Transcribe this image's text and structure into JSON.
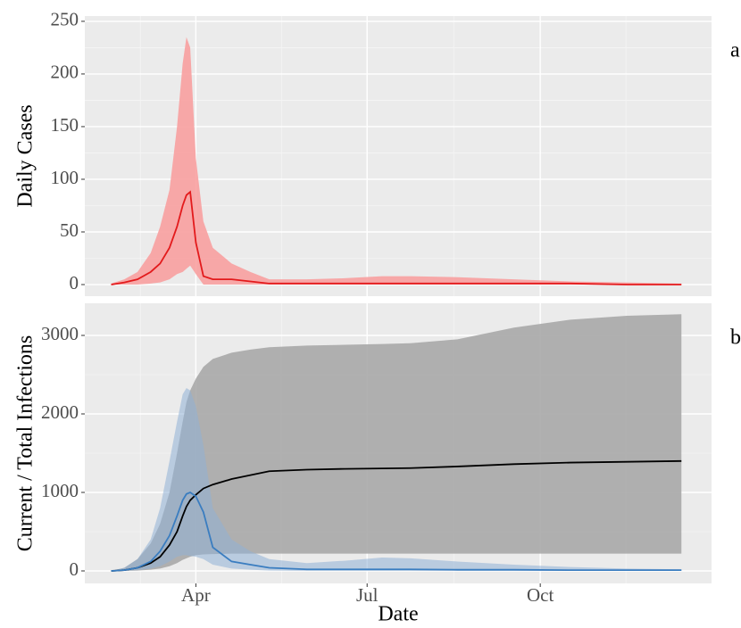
{
  "chart_data": [
    {
      "type": "line",
      "panel_label": "a",
      "ylabel": "Daily Cases",
      "x": [
        46,
        53,
        60,
        67,
        72,
        77,
        81,
        84,
        86,
        88,
        91,
        95,
        100,
        110,
        120,
        130,
        150,
        170,
        190,
        205,
        230,
        260,
        290,
        320,
        349
      ],
      "xlim": [
        32,
        365
      ],
      "ylim": [
        -11,
        255
      ],
      "yticks": [
        0,
        50,
        100,
        150,
        200,
        250
      ],
      "grid": true,
      "series": [
        {
          "color": "#E31A1C",
          "band_color": "#F8A0A0",
          "values": [
            0,
            2,
            5,
            12,
            20,
            35,
            55,
            75,
            85,
            88,
            40,
            8,
            5,
            5,
            3,
            1,
            1,
            1,
            1,
            1,
            1,
            1,
            1,
            0,
            0
          ],
          "lower": [
            0,
            0,
            0,
            1,
            2,
            5,
            10,
            12,
            15,
            18,
            10,
            0,
            0,
            0,
            0,
            0,
            0,
            0,
            0,
            0,
            0,
            0,
            0,
            0,
            0
          ],
          "upper": [
            1,
            5,
            12,
            30,
            55,
            90,
            150,
            210,
            235,
            225,
            120,
            60,
            35,
            20,
            12,
            5,
            5,
            6,
            8,
            8,
            7,
            5,
            3,
            2,
            1
          ]
        }
      ]
    },
    {
      "type": "line",
      "panel_label": "b",
      "ylabel": "Current / Total Infections",
      "xlabel": "Date",
      "x": [
        46,
        53,
        60,
        67,
        72,
        77,
        81,
        84,
        86,
        88,
        91,
        95,
        100,
        110,
        120,
        130,
        150,
        170,
        190,
        205,
        230,
        260,
        290,
        320,
        349
      ],
      "xlim": [
        32,
        365
      ],
      "xticks": [
        {
          "value": 91,
          "label": "Apr"
        },
        {
          "value": 182,
          "label": "Jul"
        },
        {
          "value": 274,
          "label": "Oct"
        }
      ],
      "ylim": [
        -159,
        3409
      ],
      "yticks": [
        0,
        1000,
        2000,
        3000
      ],
      "grid": true,
      "series": [
        {
          "color": "#000000",
          "band_color": "#A8A8A8",
          "values": [
            0,
            10,
            40,
            100,
            180,
            330,
            500,
            700,
            820,
            900,
            970,
            1050,
            1100,
            1170,
            1220,
            1270,
            1290,
            1300,
            1305,
            1310,
            1330,
            1360,
            1380,
            1390,
            1400
          ],
          "lower": [
            0,
            0,
            5,
            15,
            30,
            60,
            100,
            140,
            160,
            180,
            200,
            210,
            215,
            220,
            220,
            220,
            220,
            220,
            220,
            220,
            220,
            220,
            220,
            220,
            220
          ],
          "upper": [
            0,
            40,
            150,
            350,
            600,
            1000,
            1500,
            1900,
            2150,
            2300,
            2450,
            2600,
            2700,
            2780,
            2820,
            2850,
            2870,
            2880,
            2890,
            2900,
            2950,
            3100,
            3200,
            3250,
            3270
          ]
        },
        {
          "color": "#3A7DC0",
          "band_color": "#8FB0D6",
          "values": [
            0,
            10,
            40,
            120,
            250,
            450,
            700,
            900,
            980,
            1000,
            950,
            750,
            300,
            120,
            80,
            40,
            20,
            20,
            20,
            20,
            15,
            15,
            10,
            10,
            10
          ],
          "lower": [
            0,
            2,
            10,
            30,
            60,
            120,
            180,
            200,
            200,
            190,
            180,
            150,
            80,
            30,
            15,
            5,
            0,
            0,
            0,
            0,
            0,
            0,
            0,
            0,
            0
          ],
          "upper": [
            0,
            40,
            150,
            400,
            800,
            1400,
            1900,
            2250,
            2330,
            2300,
            2100,
            1600,
            800,
            400,
            250,
            150,
            100,
            130,
            170,
            160,
            120,
            80,
            50,
            30,
            20
          ]
        }
      ]
    }
  ]
}
